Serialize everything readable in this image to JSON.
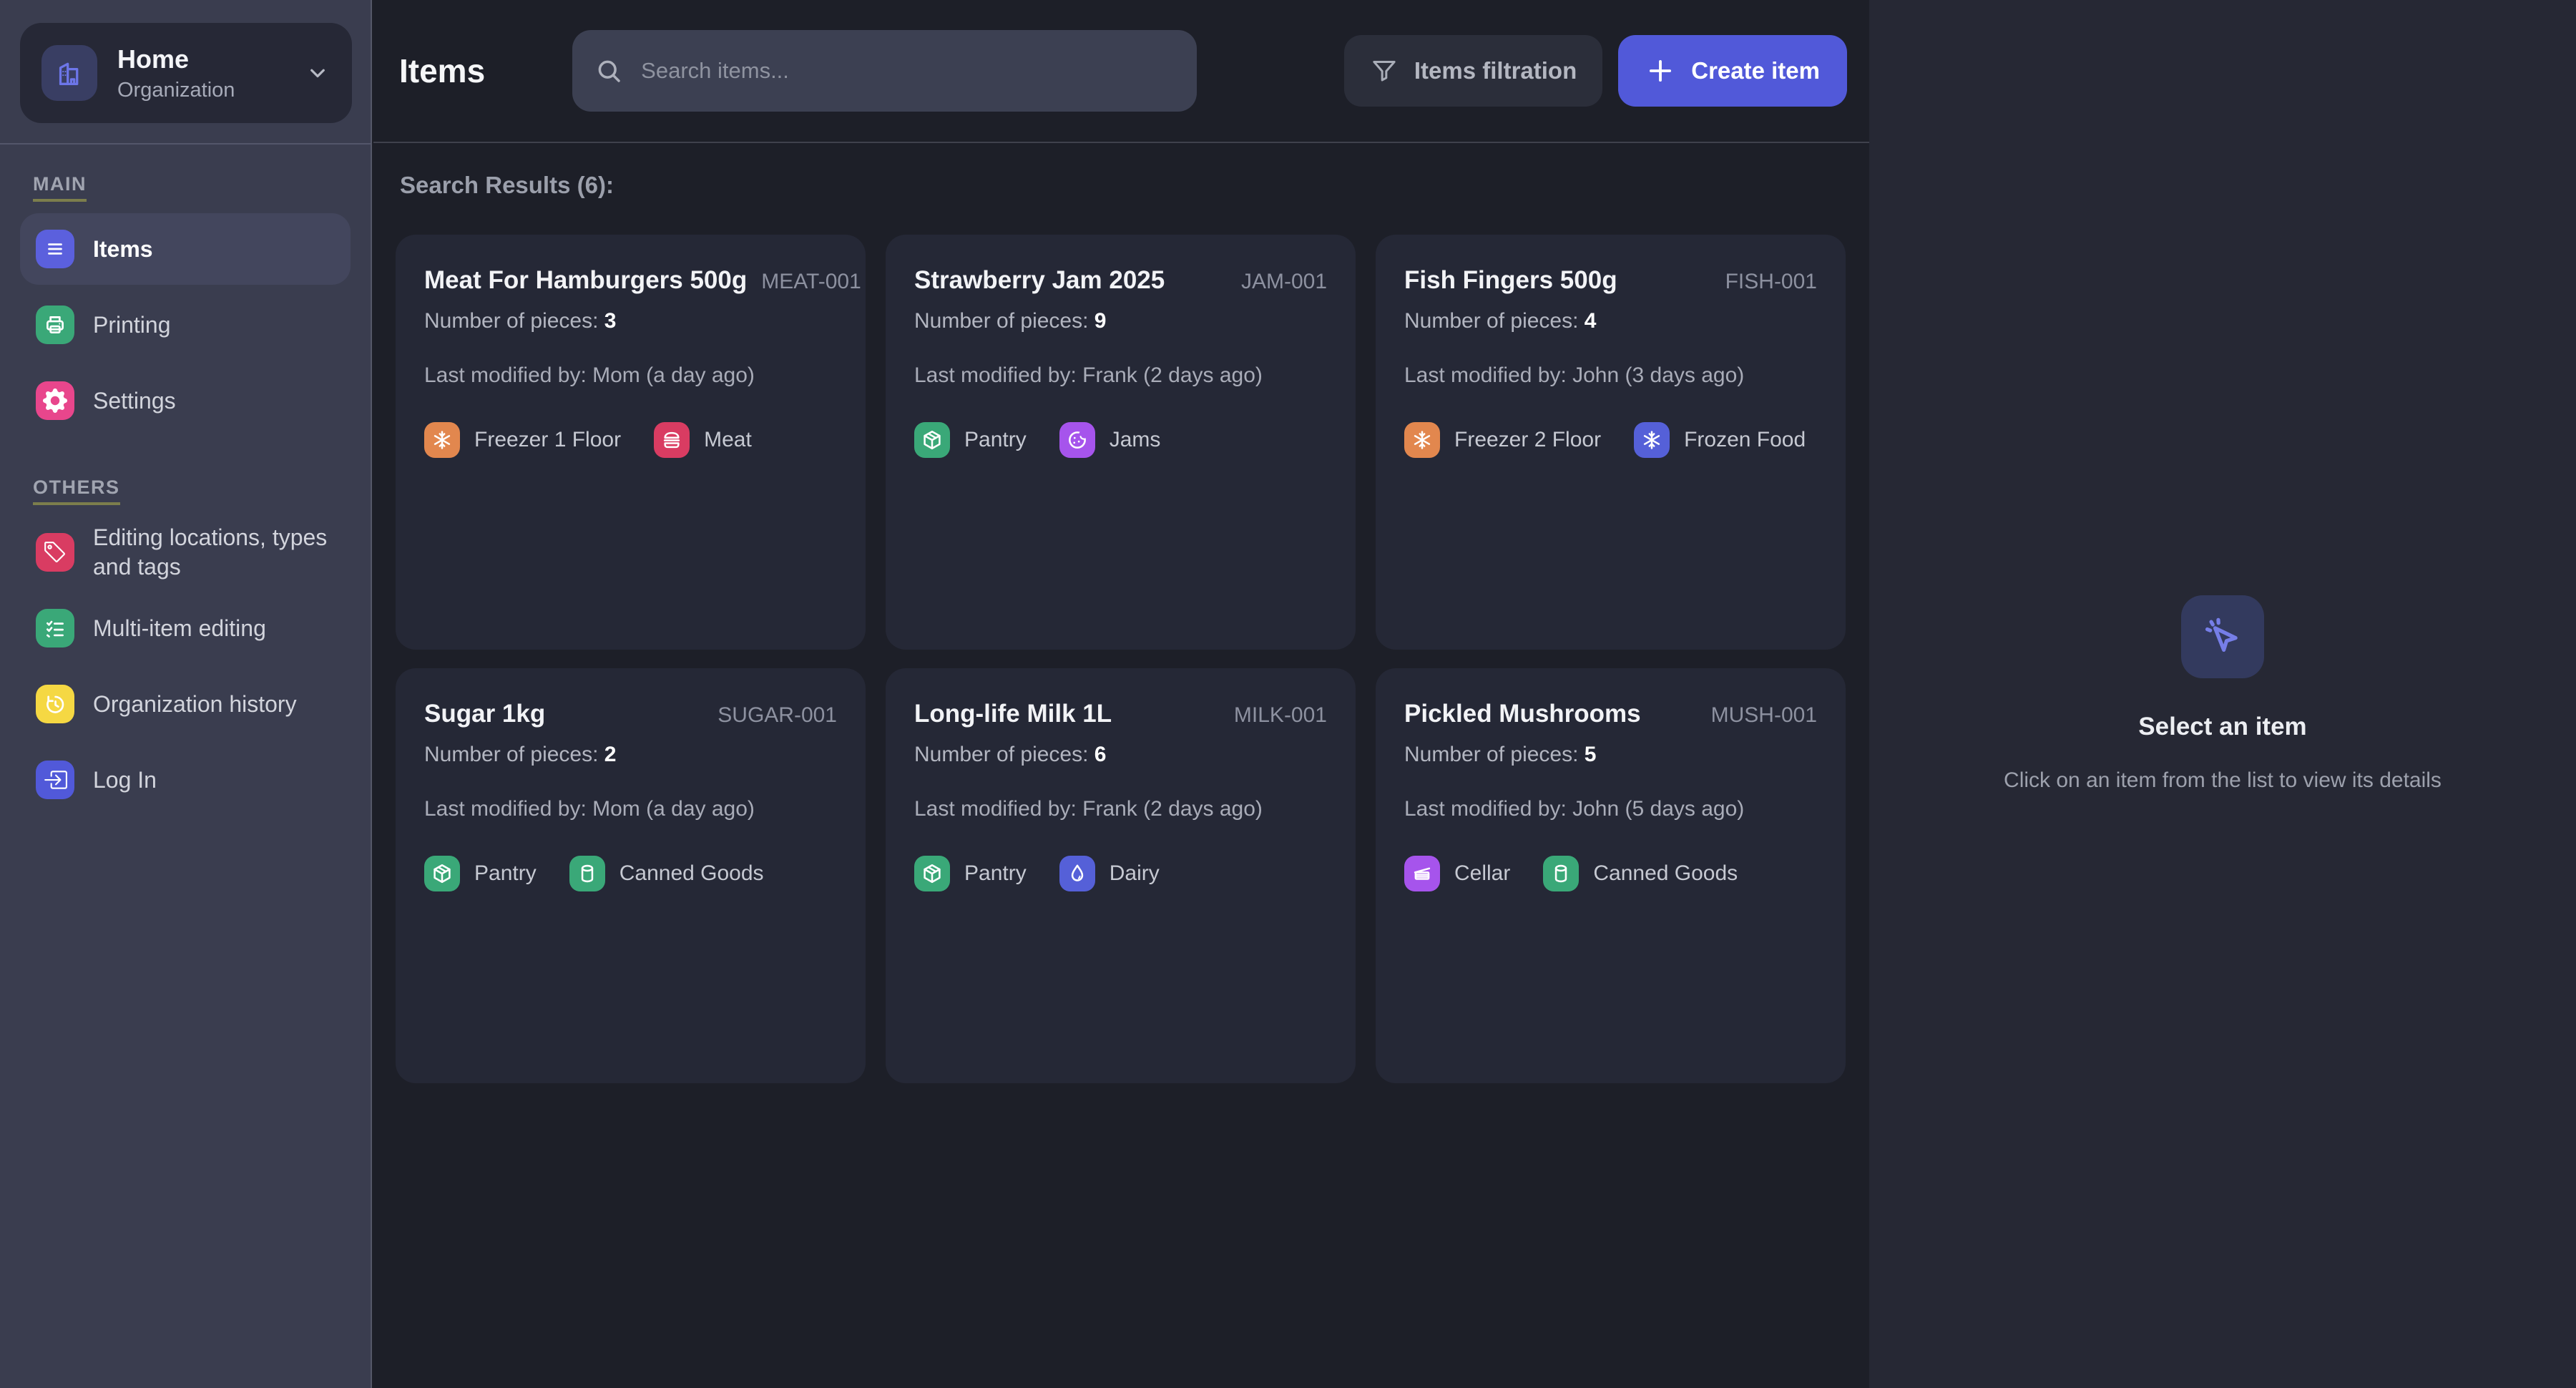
{
  "sidebar": {
    "org": {
      "name": "Home",
      "type": "Organization",
      "icon": "building"
    },
    "sections": [
      {
        "label": "MAIN",
        "items": [
          {
            "label": "Items",
            "icon": "menu",
            "color": "#5b60dd",
            "active": true
          },
          {
            "label": "Printing",
            "icon": "printer",
            "color": "#3aa878",
            "active": false
          },
          {
            "label": "Settings",
            "icon": "gear",
            "color": "#e8468c",
            "active": false
          }
        ]
      },
      {
        "label": "OTHERS",
        "items": [
          {
            "label": "Editing locations, types and tags",
            "icon": "tag",
            "color": "#d93c62",
            "active": false
          },
          {
            "label": "Multi-item editing",
            "icon": "checklist",
            "color": "#3aa878",
            "active": false
          },
          {
            "label": "Organization history",
            "icon": "history",
            "color": "#f5d843",
            "active": false
          },
          {
            "label": "Log In",
            "icon": "login",
            "color": "#5159d9",
            "active": false
          }
        ]
      }
    ]
  },
  "header": {
    "title": "Items",
    "search_placeholder": "Search items...",
    "filter_button": "Items filtration",
    "create_button": "Create item"
  },
  "results": {
    "heading": "Search Results (6):",
    "pieces_label": "Number of pieces:",
    "items": [
      {
        "name": "Meat For Hamburgers 500g",
        "code": "MEAT-001",
        "pieces": "3",
        "modified": "Last modified by: Mom (a day ago)",
        "tags": [
          {
            "label": "Freezer 1 Floor",
            "icon": "snowflake",
            "color": "#e2874e"
          },
          {
            "label": "Meat",
            "icon": "burger",
            "color": "#d93c62"
          }
        ]
      },
      {
        "name": "Strawberry Jam 2025",
        "code": "JAM-001",
        "pieces": "9",
        "modified": "Last modified by: Frank (2 days ago)",
        "tags": [
          {
            "label": "Pantry",
            "icon": "box",
            "color": "#3aa878"
          },
          {
            "label": "Jams",
            "icon": "cookie",
            "color": "#a654ec"
          }
        ]
      },
      {
        "name": "Fish Fingers 500g",
        "code": "FISH-001",
        "pieces": "4",
        "modified": "Last modified by: John (3 days ago)",
        "tags": [
          {
            "label": "Freezer 2 Floor",
            "icon": "snowflake",
            "color": "#e2874e"
          },
          {
            "label": "Frozen Food",
            "icon": "snowflake",
            "color": "#5560d8"
          }
        ]
      },
      {
        "name": "Sugar 1kg",
        "code": "SUGAR-001",
        "pieces": "2",
        "modified": "Last modified by: Mom (a day ago)",
        "tags": [
          {
            "label": "Pantry",
            "icon": "box",
            "color": "#3aa878"
          },
          {
            "label": "Canned Goods",
            "icon": "can",
            "color": "#3aa878"
          }
        ]
      },
      {
        "name": "Long-life Milk 1L",
        "code": "MILK-001",
        "pieces": "6",
        "modified": "Last modified by: Frank (2 days ago)",
        "tags": [
          {
            "label": "Pantry",
            "icon": "box",
            "color": "#3aa878"
          },
          {
            "label": "Dairy",
            "icon": "droplet",
            "color": "#5560d8"
          }
        ]
      },
      {
        "name": "Pickled Mushrooms",
        "code": "MUSH-001",
        "pieces": "5",
        "modified": "Last modified by: John (5 days ago)",
        "tags": [
          {
            "label": "Cellar",
            "icon": "cellar",
            "color": "#a654ec"
          },
          {
            "label": "Canned Goods",
            "icon": "can",
            "color": "#3aa878"
          }
        ]
      }
    ]
  },
  "detail_panel": {
    "title": "Select an item",
    "subtitle": "Click on an item from the list to view its details",
    "icon": "cursor-click"
  },
  "colors": {
    "accent": "#5159d9",
    "sidebar_bg": "#3a3d4f",
    "main_bg": "#1d1f28",
    "card_bg": "#252836",
    "panel_bg": "#262834",
    "section_underline": "#7c7e4c"
  }
}
